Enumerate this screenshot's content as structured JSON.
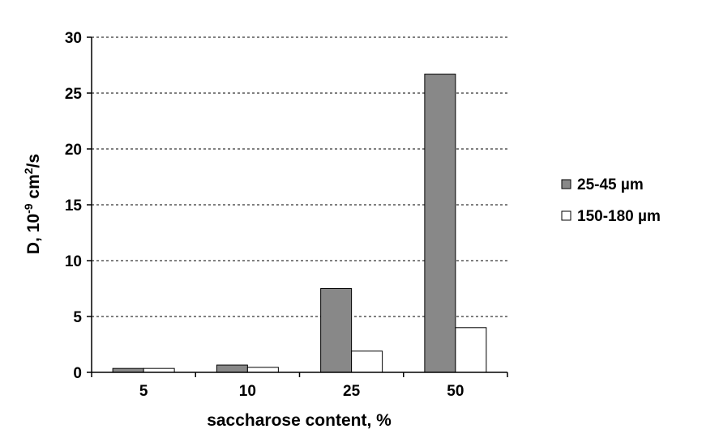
{
  "chart_data": {
    "type": "bar",
    "categories": [
      "5",
      "10",
      "25",
      "50"
    ],
    "series": [
      {
        "name": "25-45 µm",
        "values": [
          0.35,
          0.65,
          7.5,
          26.7
        ],
        "color": "#888888"
      },
      {
        "name": "150-180 µm",
        "values": [
          0.35,
          0.45,
          1.9,
          4.0
        ],
        "color": "#ffffff"
      }
    ],
    "xlabel": "saccharose content, %",
    "ylabel": {
      "prefix": "D, 10",
      "exp1": "-9",
      "middle": " cm",
      "exp2": "2",
      "suffix": "/s"
    },
    "ylim": [
      0,
      30
    ],
    "yticks": [
      "0",
      "5",
      "10",
      "15",
      "20",
      "25",
      "30"
    ],
    "ytick_values": [
      0,
      5,
      10,
      15,
      20,
      25,
      30
    ],
    "grid": "horizontal dotted",
    "legend_position": "right"
  }
}
